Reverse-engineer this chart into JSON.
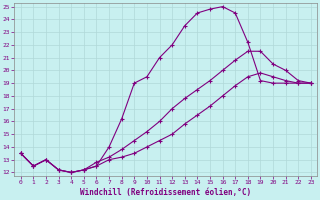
{
  "xlabel": "Windchill (Refroidissement éolien,°C)",
  "bg_color": "#c8f0f0",
  "grid_color": "#b0d8d8",
  "line_color": "#800080",
  "ylim": [
    12,
    25
  ],
  "xlim": [
    -0.5,
    23.5
  ],
  "yticks": [
    12,
    13,
    14,
    15,
    16,
    17,
    18,
    19,
    20,
    21,
    22,
    23,
    24,
    25
  ],
  "xticks": [
    0,
    1,
    2,
    3,
    4,
    5,
    6,
    7,
    8,
    9,
    10,
    11,
    12,
    13,
    14,
    15,
    16,
    17,
    18,
    19,
    20,
    21,
    22,
    23
  ],
  "line1_x": [
    0,
    1,
    2,
    3,
    4,
    5,
    6,
    7,
    8,
    9,
    10,
    11,
    12,
    13,
    14,
    15,
    16,
    17,
    18,
    19,
    20,
    21,
    22,
    23
  ],
  "line1_y": [
    13.5,
    12.5,
    13.0,
    12.2,
    12.0,
    12.2,
    12.5,
    14.0,
    16.2,
    19.0,
    19.5,
    21.0,
    22.0,
    23.5,
    24.5,
    24.8,
    25.0,
    24.5,
    22.2,
    19.2,
    19.0,
    19.0,
    19.0,
    19.0
  ],
  "line2_x": [
    0,
    1,
    2,
    3,
    4,
    5,
    6,
    7,
    8,
    9,
    10,
    11,
    12,
    13,
    14,
    15,
    16,
    17,
    18,
    19,
    20,
    21,
    22,
    23
  ],
  "line2_y": [
    13.5,
    12.5,
    13.0,
    12.2,
    12.0,
    12.2,
    12.8,
    13.2,
    13.8,
    14.5,
    15.2,
    16.0,
    17.0,
    17.8,
    18.5,
    19.2,
    20.0,
    20.8,
    21.5,
    21.5,
    20.5,
    20.0,
    19.2,
    19.0
  ],
  "line3_x": [
    0,
    1,
    2,
    3,
    4,
    5,
    6,
    7,
    8,
    9,
    10,
    11,
    12,
    13,
    14,
    15,
    16,
    17,
    18,
    19,
    20,
    21,
    22,
    23
  ],
  "line3_y": [
    13.5,
    12.5,
    13.0,
    12.2,
    12.0,
    12.2,
    12.5,
    13.0,
    13.2,
    13.5,
    14.0,
    14.5,
    15.0,
    15.8,
    16.5,
    17.2,
    18.0,
    18.8,
    19.5,
    19.8,
    19.5,
    19.2,
    19.0,
    19.0
  ]
}
